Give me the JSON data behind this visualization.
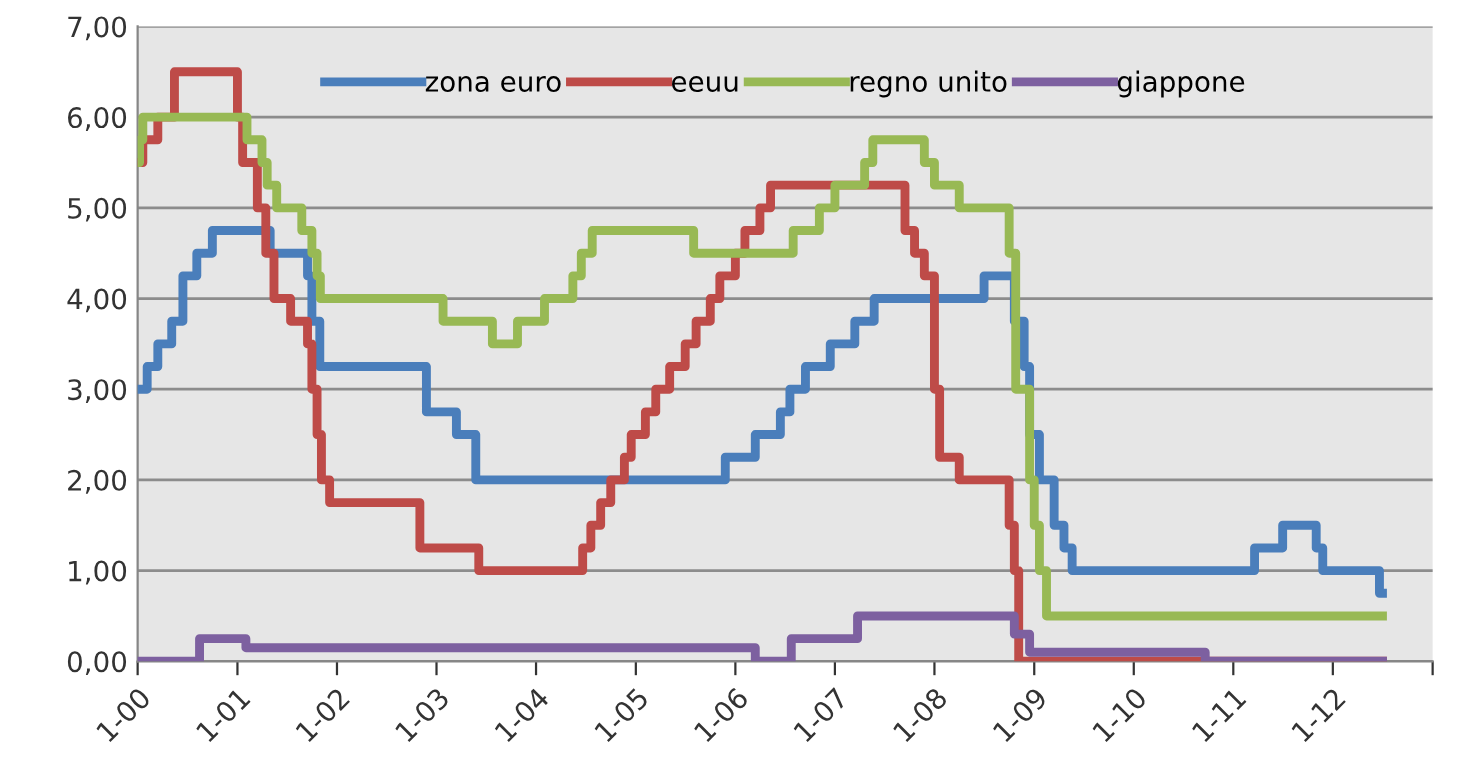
{
  "chart_data": {
    "type": "step",
    "xlim": [
      "2000-01-01",
      "2013-01-01"
    ],
    "ylim": [
      0,
      7
    ],
    "xticks": [
      {
        "value": "2000-01-01",
        "label": "1-00"
      },
      {
        "value": "2001-01-01",
        "label": "1-01"
      },
      {
        "value": "2002-01-01",
        "label": "1-02"
      },
      {
        "value": "2003-01-01",
        "label": "1-03"
      },
      {
        "value": "2004-01-01",
        "label": "1-04"
      },
      {
        "value": "2005-01-01",
        "label": "1-05"
      },
      {
        "value": "2006-01-01",
        "label": "1-06"
      },
      {
        "value": "2007-01-01",
        "label": "1-07"
      },
      {
        "value": "2008-01-01",
        "label": "1-08"
      },
      {
        "value": "2009-01-01",
        "label": "1-09"
      },
      {
        "value": "2010-01-01",
        "label": "1-10"
      },
      {
        "value": "2011-01-01",
        "label": "1-11"
      },
      {
        "value": "2012-01-01",
        "label": "1-12"
      },
      {
        "value": "2013-01-01",
        "label": null
      }
    ],
    "yticks": [
      {
        "value": 0,
        "label": "0,00"
      },
      {
        "value": 1,
        "label": "1,00"
      },
      {
        "value": 2,
        "label": "2,00"
      },
      {
        "value": 3,
        "label": "3,00"
      },
      {
        "value": 4,
        "label": "4,00"
      },
      {
        "value": 5,
        "label": "5,00"
      },
      {
        "value": 6,
        "label": "6,00"
      },
      {
        "value": 7,
        "label": "7,00"
      }
    ],
    "grid": "y",
    "legend": "top",
    "line_style": "solid",
    "marker": "none",
    "series": [
      {
        "name": "zona euro",
        "color": "#4a7ebb",
        "x": [
          "2000-01-01",
          "2000-02-05",
          "2000-03-15",
          "2000-05-05",
          "2000-06-15",
          "2000-08-05",
          "2000-10-01",
          "2001-05-01",
          "2001-09-15",
          "2001-10-01",
          "2001-10-30",
          "2002-11-25",
          "2003-03-15",
          "2003-05-25",
          "2005-11-25",
          "2006-03-15",
          "2006-06-15",
          "2006-07-20",
          "2006-09-15",
          "2006-12-15",
          "2007-03-15",
          "2007-05-25",
          "2008-07-01",
          "2008-10-20",
          "2008-11-25",
          "2008-12-15",
          "2009-01-20",
          "2009-03-15",
          "2009-04-20",
          "2009-05-20",
          "2011-03-20",
          "2011-07-01",
          "2011-11-01",
          "2011-11-25",
          "2012-06-20",
          "2012-07-01"
        ],
        "values": [
          3.0,
          3.25,
          3.5,
          3.75,
          4.25,
          4.5,
          4.75,
          4.5,
          4.25,
          3.75,
          3.25,
          2.75,
          2.5,
          2.0,
          2.25,
          2.5,
          2.75,
          3.0,
          3.25,
          3.5,
          3.75,
          4.0,
          4.25,
          3.75,
          3.25,
          2.5,
          2.0,
          1.5,
          1.25,
          1.0,
          1.25,
          1.5,
          1.25,
          1.0,
          0.75,
          0.75
        ]
      },
      {
        "name": "eeuu",
        "color": "#be4b48",
        "x": [
          "2000-01-01",
          "2000-01-20",
          "2000-03-15",
          "2000-05-15",
          "2001-01-01",
          "2001-01-20",
          "2001-03-15",
          "2001-04-15",
          "2001-05-15",
          "2001-07-15",
          "2001-09-15",
          "2001-10-01",
          "2001-10-20",
          "2001-11-05",
          "2001-12-05",
          "2002-11-01",
          "2003-06-05",
          "2004-06-20",
          "2004-07-20",
          "2004-08-25",
          "2004-10-01",
          "2004-11-20",
          "2004-12-15",
          "2005-02-05",
          "2005-03-15",
          "2005-05-05",
          "2005-07-01",
          "2005-08-10",
          "2005-10-01",
          "2005-11-05",
          "2006-01-01",
          "2006-02-05",
          "2006-04-01",
          "2006-05-10",
          "2007-09-15",
          "2007-10-20",
          "2007-11-25",
          "2008-01-01",
          "2008-01-20",
          "2008-04-01",
          "2008-10-01",
          "2008-10-20",
          "2008-11-05",
          "2008-12-01",
          "2012-07-01"
        ],
        "values": [
          5.5,
          5.75,
          6.0,
          6.5,
          6.0,
          5.5,
          5.0,
          4.5,
          4.0,
          3.75,
          3.5,
          3.0,
          2.5,
          2.0,
          1.75,
          1.25,
          1.0,
          1.25,
          1.5,
          1.75,
          2.0,
          2.25,
          2.5,
          2.75,
          3.0,
          3.25,
          3.5,
          3.75,
          4.0,
          4.25,
          4.5,
          4.75,
          5.0,
          5.25,
          4.75,
          4.5,
          4.25,
          3.0,
          2.25,
          2.0,
          1.5,
          1.0,
          0.0,
          0.0,
          0.0
        ]
      },
      {
        "name": "regno unito",
        "color": "#98b954",
        "x": [
          "2000-01-01",
          "2000-01-08",
          "2000-01-20",
          "2001-02-05",
          "2001-04-01",
          "2001-04-20",
          "2001-05-25",
          "2001-08-25",
          "2001-10-01",
          "2001-10-20",
          "2001-11-01",
          "2003-01-25",
          "2003-07-25",
          "2003-10-25",
          "2004-02-01",
          "2004-05-15",
          "2004-06-15",
          "2004-07-25",
          "2005-08-01",
          "2006-08-01",
          "2006-11-05",
          "2007-01-01",
          "2007-04-20",
          "2007-05-20",
          "2007-11-25",
          "2008-01-01",
          "2008-04-01",
          "2008-10-01",
          "2008-10-25",
          "2008-12-15",
          "2009-01-01",
          "2009-01-20",
          "2009-02-15",
          "2012-07-01"
        ],
        "values": [
          5.5,
          5.75,
          6.0,
          5.75,
          5.5,
          5.25,
          5.0,
          4.75,
          4.5,
          4.25,
          4.0,
          3.75,
          3.5,
          3.75,
          4.0,
          4.25,
          4.5,
          4.75,
          4.5,
          4.75,
          5.0,
          5.25,
          5.5,
          5.75,
          5.5,
          5.25,
          5.0,
          4.5,
          3.0,
          2.0,
          1.5,
          1.0,
          0.5,
          0.5
        ]
      },
      {
        "name": "giappone",
        "color": "#7d60a0",
        "x": [
          "2000-01-01",
          "2000-08-15",
          "2001-02-01",
          "2006-03-15",
          "2006-07-25",
          "2007-03-25",
          "2008-10-20",
          "2008-12-15",
          "2010-09-20",
          "2012-07-01"
        ],
        "values": [
          0.0,
          0.25,
          0.15,
          0.0,
          0.25,
          0.5,
          0.3,
          0.1,
          0.0,
          0.0
        ]
      }
    ]
  }
}
